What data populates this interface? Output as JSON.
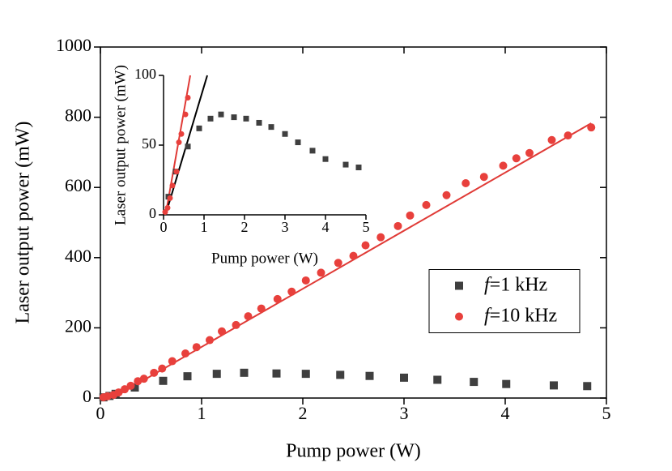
{
  "chart_data": [
    {
      "type": "scatter",
      "xlabel": "Pump power (W)",
      "ylabel": "Laser output power (mW)",
      "xlim": [
        0,
        5
      ],
      "xticks": [
        0,
        1,
        2,
        3,
        4,
        5
      ],
      "ylim": [
        0,
        1000
      ],
      "yticks": [
        0,
        200,
        400,
        600,
        800,
        1000
      ],
      "legend_position": "center right",
      "series": [
        {
          "name": "f=1 kHz",
          "color": "#3f3f3f",
          "marker": "square",
          "x": [
            0.03,
            0.09,
            0.15,
            0.34,
            0.62,
            0.86,
            1.15,
            1.42,
            1.74,
            2.03,
            2.37,
            2.66,
            3.0,
            3.33,
            3.69,
            4.01,
            4.48,
            4.81
          ],
          "values": [
            2,
            6,
            12,
            30,
            49,
            62,
            69,
            72,
            70,
            69,
            66,
            63,
            58,
            52,
            46,
            40,
            36,
            34
          ]
        },
        {
          "name": "f=10 kHz",
          "color": "#e8403c",
          "marker": "circle",
          "x": [
            0.03,
            0.07,
            0.13,
            0.18,
            0.24,
            0.3,
            0.37,
            0.43,
            0.53,
            0.61,
            0.71,
            0.84,
            0.95,
            1.08,
            1.2,
            1.34,
            1.46,
            1.59,
            1.75,
            1.89,
            2.03,
            2.18,
            2.35,
            2.5,
            2.62,
            2.77,
            2.94,
            3.06,
            3.22,
            3.42,
            3.61,
            3.79,
            3.98,
            4.11,
            4.24,
            4.46,
            4.62,
            4.85
          ],
          "values": [
            2,
            5,
            9,
            16,
            25,
            35,
            48,
            55,
            72,
            84,
            105,
            127,
            145,
            165,
            190,
            208,
            233,
            255,
            282,
            303,
            335,
            357,
            385,
            405,
            435,
            458,
            490,
            520,
            550,
            578,
            612,
            630,
            662,
            683,
            698,
            735,
            748,
            771
          ]
        }
      ],
      "fit_lines": [
        {
          "color": "#e03a36",
          "x": [
            0.12,
            4.85
          ],
          "values": [
            0,
            783
          ]
        }
      ]
    },
    {
      "type": "scatter",
      "xlabel": "Pump power (W)",
      "ylabel": "Laser output power (mW)",
      "xlim": [
        0,
        5
      ],
      "xticks": [
        0,
        1,
        2,
        3,
        4,
        5
      ],
      "ylim": [
        0,
        100
      ],
      "yticks": [
        0,
        50,
        100
      ],
      "series": [
        {
          "color": "#3f3f3f",
          "marker": "square",
          "x": [
            0.12,
            0.3,
            0.6,
            0.88,
            1.16,
            1.42,
            1.74,
            2.04,
            2.36,
            2.66,
            3.0,
            3.32,
            3.68,
            4.0,
            4.5,
            4.82
          ],
          "values": [
            13,
            31,
            49,
            62,
            69,
            72,
            70,
            69,
            66,
            63,
            58,
            52,
            46,
            40,
            36,
            34
          ]
        },
        {
          "color": "#e8403c",
          "marker": "circle",
          "x": [
            0.04,
            0.1,
            0.16,
            0.22,
            0.32,
            0.38,
            0.44,
            0.54,
            0.6
          ],
          "values": [
            2,
            5,
            12,
            21,
            31,
            52,
            58,
            72,
            84
          ]
        }
      ],
      "fit_lines": [
        {
          "color": "#e03a36",
          "x": [
            0.05,
            0.66
          ],
          "values": [
            0,
            100
          ]
        },
        {
          "color": "#000000",
          "x": [
            0.05,
            1.08
          ],
          "values": [
            0,
            100
          ]
        }
      ]
    }
  ]
}
